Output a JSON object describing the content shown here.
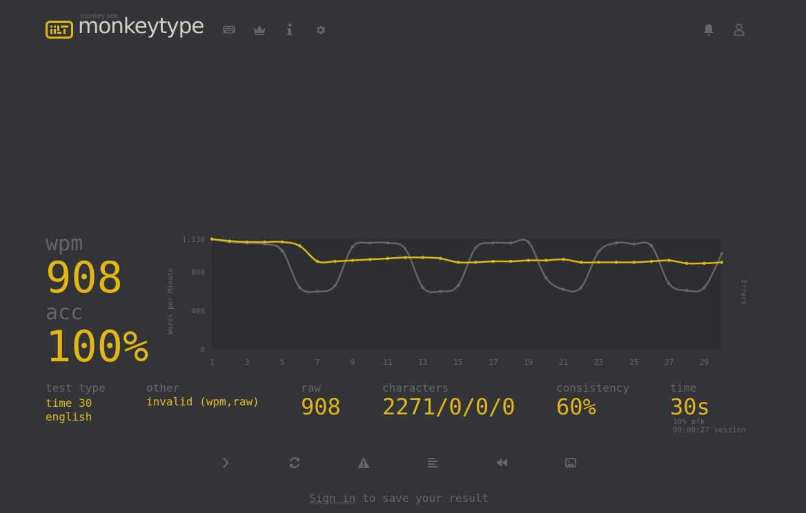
{
  "header": {
    "logo_sub": "monkey see",
    "logo_text": "monkeytype",
    "nav_icons": [
      "keyboard-icon",
      "crown-icon",
      "info-icon",
      "gear-icon"
    ],
    "right_icons": [
      "bell-icon",
      "user-icon"
    ]
  },
  "stats": {
    "wpm_label": "wpm",
    "wpm_value": "908",
    "acc_label": "acc",
    "acc_value": "100%",
    "test_type_label": "test type",
    "test_type_line1": "time 30",
    "test_type_line2": "english",
    "other_label": "other",
    "other_value": "invalid (wpm,raw)",
    "raw_label": "raw",
    "raw_value": "908",
    "characters_label": "characters",
    "characters_value": "2271/0/0/0",
    "consistency_label": "consistency",
    "consistency_value": "60%",
    "time_label": "time",
    "time_value": "30s",
    "afk": "10% afk",
    "session": "00:00:27 session"
  },
  "chart_data": {
    "type": "line",
    "ylabel": "Words per Minute",
    "y2label": "Errors",
    "ylim": [
      0,
      1138
    ],
    "yticks": [
      "0",
      "400",
      "800",
      "1,138"
    ],
    "xticks": [
      "1",
      "3",
      "5",
      "7",
      "9",
      "11",
      "13",
      "15",
      "17",
      "19",
      "21",
      "23",
      "25",
      "27",
      "29"
    ],
    "x": [
      1,
      2,
      3,
      4,
      5,
      6,
      7,
      8,
      9,
      10,
      11,
      12,
      13,
      14,
      15,
      16,
      17,
      18,
      19,
      20,
      21,
      22,
      23,
      24,
      25,
      26,
      27,
      28,
      29,
      30
    ],
    "series": [
      {
        "color": "#e2b714",
        "values": [
          1140,
          1120,
          1110,
          1110,
          1110,
          1070,
          910,
          910,
          920,
          930,
          940,
          950,
          950,
          940,
          900,
          900,
          910,
          910,
          920,
          920,
          930,
          900,
          900,
          900,
          900,
          910,
          920,
          890,
          890,
          900
        ]
      },
      {
        "color": "#646669",
        "values": [
          1140,
          1110,
          1100,
          1090,
          1020,
          640,
          600,
          660,
          1060,
          1100,
          1100,
          1040,
          640,
          600,
          660,
          1050,
          1100,
          1100,
          1110,
          740,
          620,
          640,
          1010,
          1100,
          1090,
          1070,
          680,
          610,
          640,
          990
        ]
      }
    ]
  },
  "colors": {
    "background": "#323437",
    "main": "#e2b714",
    "sub": "#646669",
    "text": "#d1d0c5"
  },
  "actions": [
    "next-test-icon",
    "restart-icon",
    "warning-icon",
    "text-lines-icon",
    "rewind-icon",
    "image-icon"
  ],
  "footer": {
    "signin_link": "Sign in",
    "signin_rest": " to save your result"
  }
}
